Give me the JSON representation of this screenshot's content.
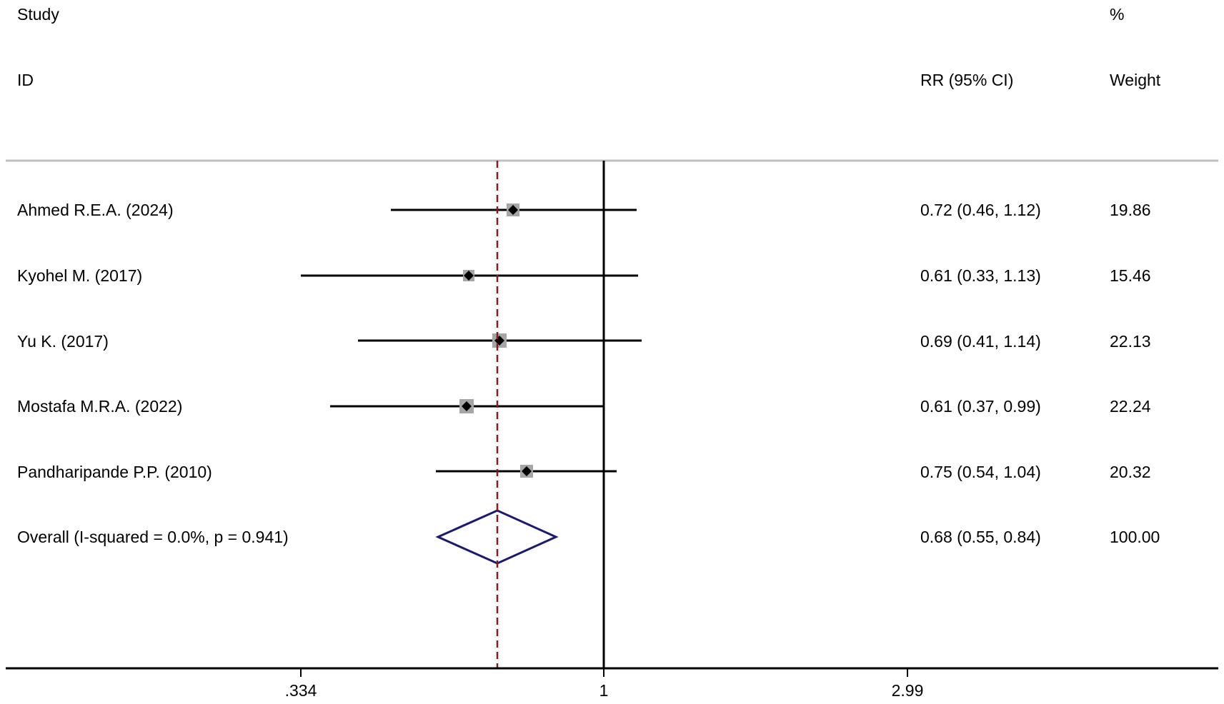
{
  "chart_data": {
    "type": "forest",
    "columns": {
      "study_header": "Study",
      "id_header": "ID",
      "effect_header": "RR (95% CI)",
      "weight_header_top": "%",
      "weight_header": "Weight"
    },
    "studies": [
      {
        "id": "Ahmed R.E.A. (2024)",
        "rr": 0.72,
        "lower": 0.46,
        "upper": 1.12,
        "effect_text": "0.72 (0.46, 1.12)",
        "weight": "19.86"
      },
      {
        "id": "Kyohel M. (2017)",
        "rr": 0.61,
        "lower": 0.33,
        "upper": 1.13,
        "effect_text": "0.61 (0.33, 1.13)",
        "weight": "15.46"
      },
      {
        "id": "Yu K. (2017)",
        "rr": 0.69,
        "lower": 0.41,
        "upper": 1.14,
        "effect_text": "0.69 (0.41, 1.14)",
        "weight": "22.13"
      },
      {
        "id": "Mostafa M.R.A. (2022)",
        "rr": 0.61,
        "lower": 0.37,
        "upper": 0.99,
        "effect_text": "0.61 (0.37, 0.99)",
        "weight": "22.24"
      },
      {
        "id": "Pandharipande P.P. (2010)",
        "rr": 0.75,
        "lower": 0.54,
        "upper": 1.04,
        "effect_text": "0.75 (0.54, 1.04)",
        "weight": "20.32"
      }
    ],
    "overall": {
      "id": "Overall  (I-squared = 0.0%, p = 0.941)",
      "rr": 0.68,
      "lower": 0.55,
      "upper": 0.84,
      "effect_text": "0.68 (0.55, 0.84)",
      "weight": "100.00"
    },
    "x_axis": {
      "scale": "log",
      "ticks": [
        {
          "value": 0.334,
          "label": ".334"
        },
        {
          "value": 1,
          "label": "1"
        },
        {
          "value": 2.99,
          "label": "2.99"
        }
      ],
      "null_line": 1,
      "range": [
        0.334,
        2.99
      ]
    },
    "colors": {
      "axis": "#000000",
      "ci_line": "#000000",
      "weight_box": "#a6a6a6",
      "point": "#000000",
      "overall_diamond": "#1a1a6e",
      "overall_reference_line": "#8b1a1a",
      "header_rule": "#bfbfbf"
    }
  }
}
